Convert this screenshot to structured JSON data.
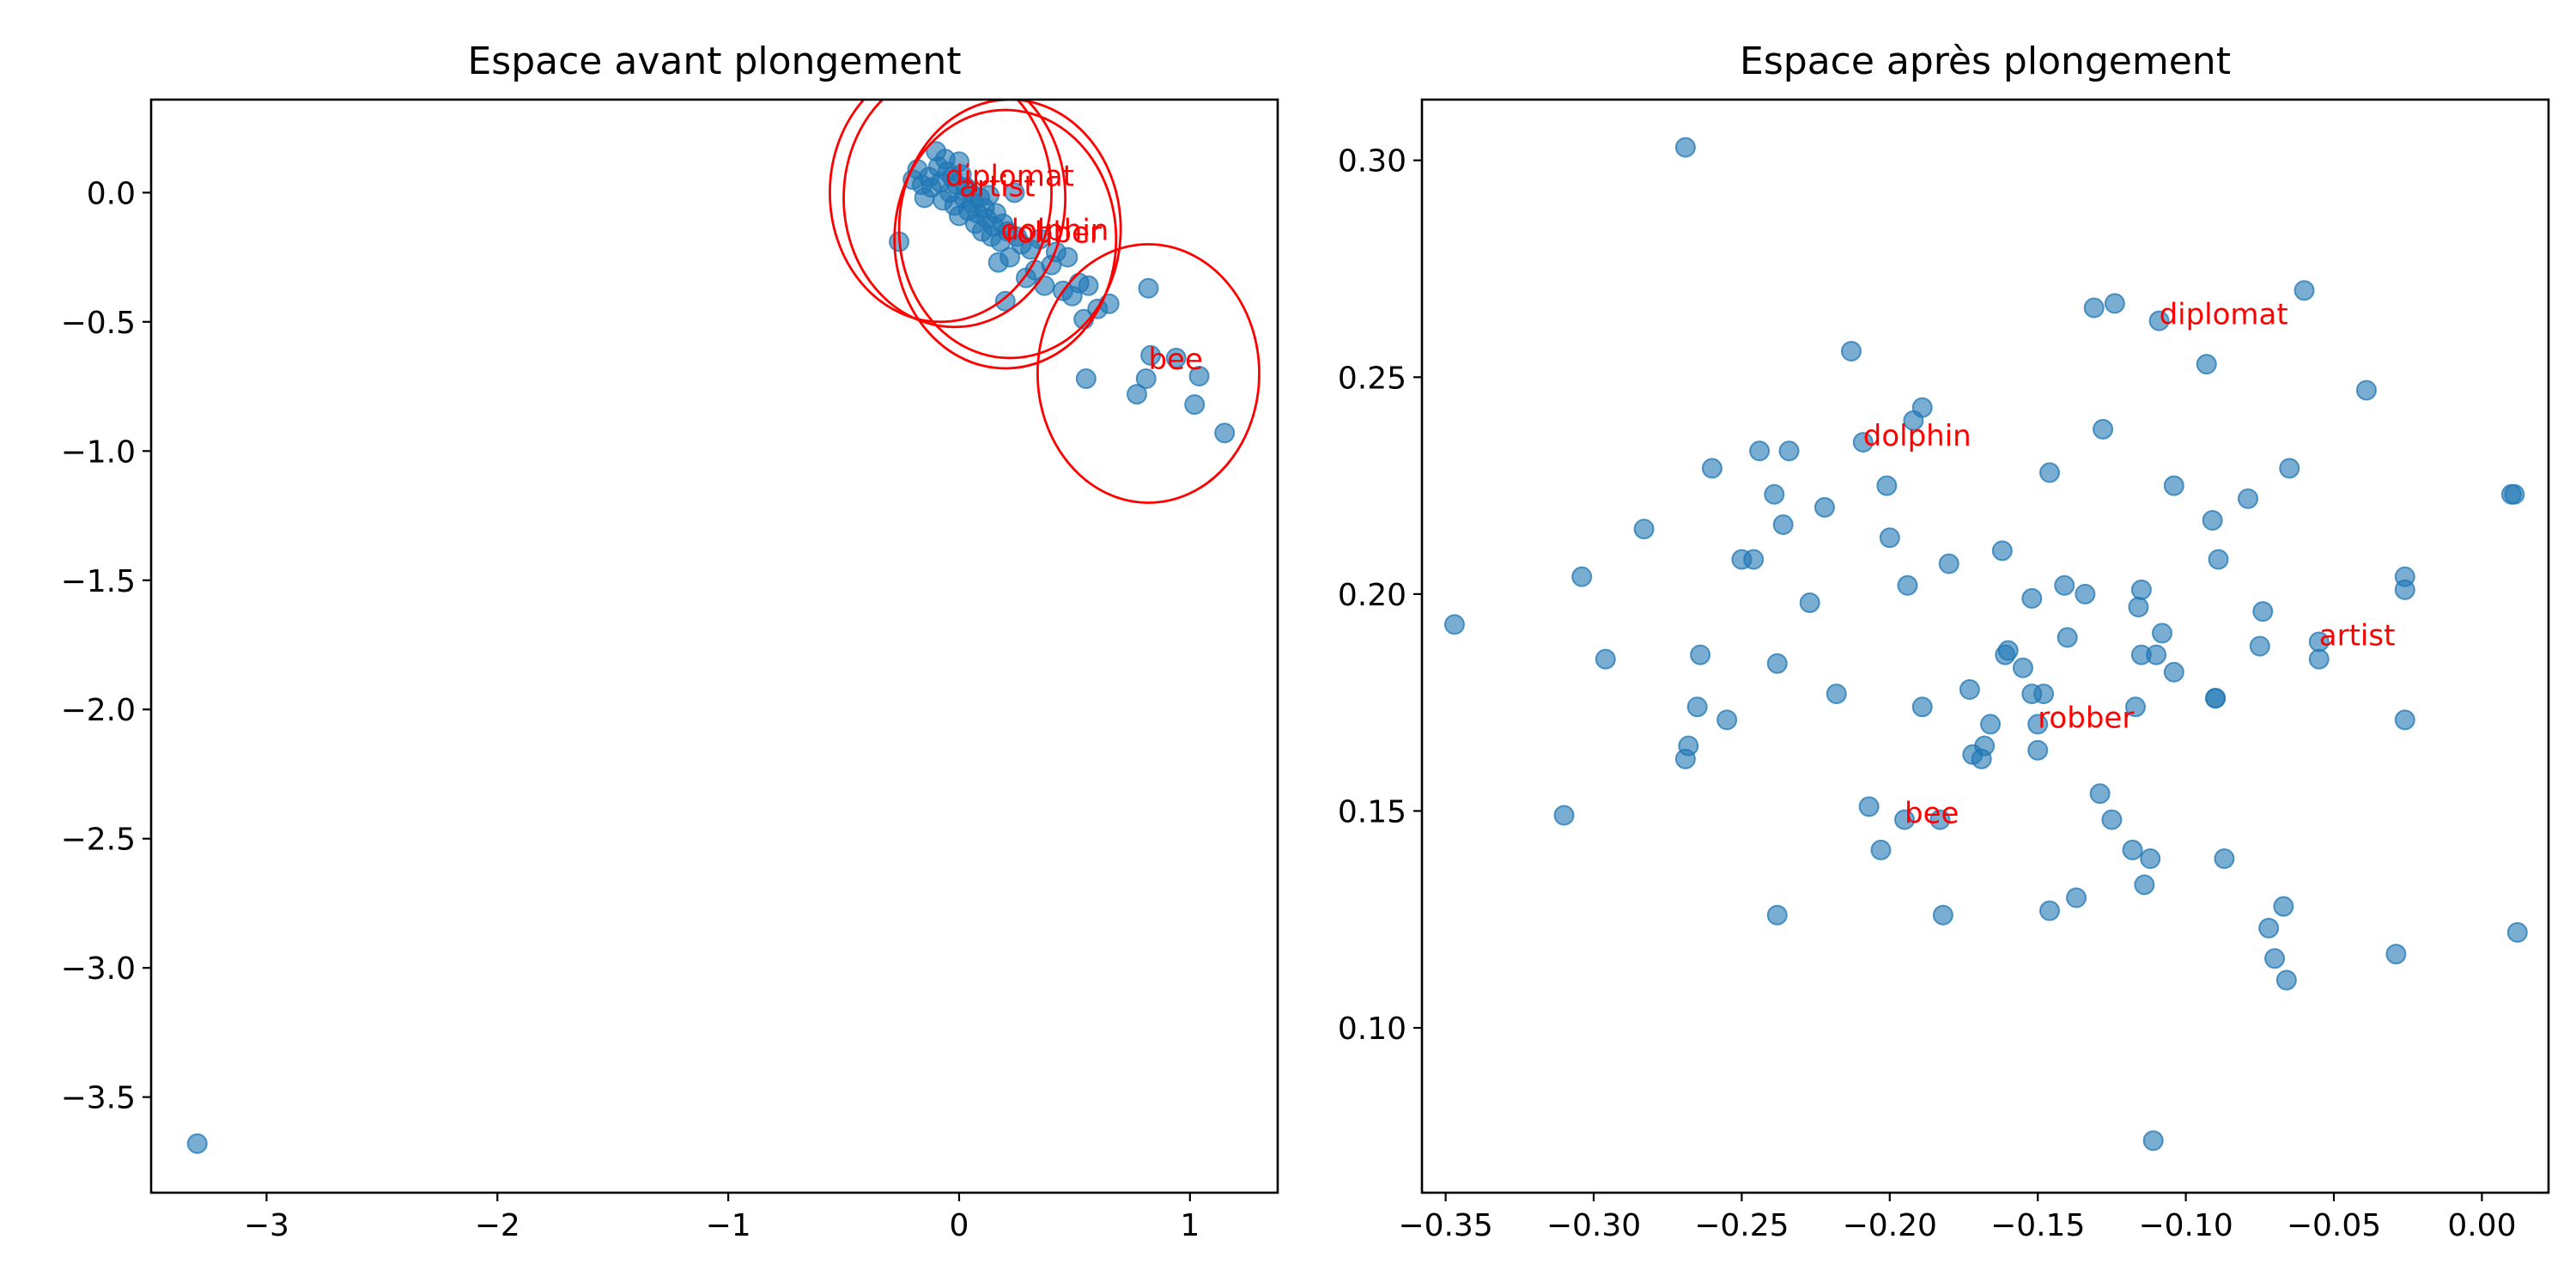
{
  "chart_data": [
    {
      "type": "scatter",
      "title": "Espace avant plongement",
      "xlim": [
        -3.5,
        1.38
      ],
      "ylim": [
        -3.87,
        0.36
      ],
      "xticks": [
        -3,
        -2,
        -1,
        0,
        1
      ],
      "xtick_labels": [
        "−3",
        "−2",
        "−1",
        "0",
        "1"
      ],
      "yticks": [
        0.0,
        -0.5,
        -1.0,
        -1.5,
        -2.0,
        -2.5,
        -3.0,
        -3.5
      ],
      "ytick_labels": [
        "0.0",
        "−0.5",
        "−1.0",
        "−1.5",
        "−2.0",
        "−2.5",
        "−3.0",
        "−3.5"
      ],
      "points": [
        [
          -3.3,
          -3.68
        ],
        [
          -0.26,
          -0.19
        ],
        [
          -0.2,
          0.05
        ],
        [
          -0.18,
          0.09
        ],
        [
          -0.16,
          0.03
        ],
        [
          -0.15,
          -0.02
        ],
        [
          -0.13,
          0.06
        ],
        [
          -0.12,
          0.02
        ],
        [
          -0.1,
          0.16
        ],
        [
          -0.09,
          0.1
        ],
        [
          -0.08,
          0.04
        ],
        [
          -0.07,
          -0.03
        ],
        [
          -0.06,
          0.13
        ],
        [
          -0.05,
          0.08
        ],
        [
          -0.04,
          0.0
        ],
        [
          -0.03,
          0.06
        ],
        [
          -0.02,
          -0.05
        ],
        [
          -0.01,
          0.03
        ],
        [
          0.0,
          0.12
        ],
        [
          0.0,
          -0.09
        ],
        [
          0.01,
          0.07
        ],
        [
          0.02,
          -0.02
        ],
        [
          0.03,
          0.02
        ],
        [
          0.04,
          -0.07
        ],
        [
          0.05,
          0.0
        ],
        [
          0.06,
          -0.04
        ],
        [
          0.07,
          -0.12
        ],
        [
          0.08,
          -0.08
        ],
        [
          0.09,
          -0.02
        ],
        [
          0.1,
          -0.15
        ],
        [
          0.11,
          -0.06
        ],
        [
          0.12,
          -0.1
        ],
        [
          0.13,
          -0.01
        ],
        [
          0.14,
          -0.17
        ],
        [
          0.15,
          -0.13
        ],
        [
          0.16,
          -0.08
        ],
        [
          0.17,
          -0.27
        ],
        [
          0.18,
          -0.19
        ],
        [
          0.19,
          -0.12
        ],
        [
          0.2,
          -0.42
        ],
        [
          0.21,
          -0.15
        ],
        [
          0.22,
          -0.25
        ],
        [
          0.24,
          0.0
        ],
        [
          0.25,
          -0.17
        ],
        [
          0.27,
          -0.2
        ],
        [
          0.29,
          -0.33
        ],
        [
          0.31,
          -0.22
        ],
        [
          0.33,
          -0.3
        ],
        [
          0.35,
          -0.18
        ],
        [
          0.37,
          -0.36
        ],
        [
          0.4,
          -0.28
        ],
        [
          0.42,
          -0.23
        ],
        [
          0.45,
          -0.38
        ],
        [
          0.47,
          -0.25
        ],
        [
          0.49,
          -0.4
        ],
        [
          0.52,
          -0.35
        ],
        [
          0.54,
          -0.49
        ],
        [
          0.55,
          -0.72
        ],
        [
          0.56,
          -0.36
        ],
        [
          0.6,
          -0.45
        ],
        [
          0.65,
          -0.43
        ],
        [
          0.77,
          -0.78
        ],
        [
          0.81,
          -0.72
        ],
        [
          0.82,
          -0.37
        ],
        [
          0.83,
          -0.63
        ],
        [
          0.94,
          -0.64
        ],
        [
          1.02,
          -0.82
        ],
        [
          1.04,
          -0.71
        ],
        [
          1.15,
          -0.93
        ]
      ],
      "annotations": [
        {
          "label": "diplomat",
          "x": -0.06,
          "y": 0.04
        },
        {
          "label": "artist",
          "x": 0.0,
          "y": 0.0
        },
        {
          "label": "dolphin",
          "x": 0.18,
          "y": -0.17
        },
        {
          "label": "robber",
          "x": 0.2,
          "y": -0.18
        },
        {
          "label": "bee",
          "x": 0.82,
          "y": -0.67
        }
      ],
      "circles": [
        {
          "cx": -0.08,
          "cy": 0.0,
          "rx": 0.48,
          "ry": 0.5
        },
        {
          "cx": -0.02,
          "cy": -0.02,
          "rx": 0.48,
          "ry": 0.5
        },
        {
          "cx": 0.2,
          "cy": -0.18,
          "rx": 0.48,
          "ry": 0.5
        },
        {
          "cx": 0.22,
          "cy": -0.14,
          "rx": 0.48,
          "ry": 0.5
        },
        {
          "cx": 0.82,
          "cy": -0.7,
          "rx": 0.48,
          "ry": 0.5
        }
      ]
    },
    {
      "type": "scatter",
      "title": "Espace après plongement",
      "xlim": [
        -0.358,
        0.0225
      ],
      "ylim": [
        0.062,
        0.314
      ],
      "xticks": [
        -0.35,
        -0.3,
        -0.25,
        -0.2,
        -0.15,
        -0.1,
        -0.05,
        0.0
      ],
      "xtick_labels": [
        "−0.35",
        "−0.30",
        "−0.25",
        "−0.20",
        "−0.15",
        "−0.10",
        "−0.05",
        "0.00"
      ],
      "yticks": [
        0.1,
        0.15,
        0.2,
        0.25,
        0.3
      ],
      "ytick_labels": [
        "0.10",
        "0.15",
        "0.20",
        "0.25",
        "0.30"
      ],
      "points": [
        [
          -0.269,
          0.303
        ],
        [
          -0.347,
          0.193
        ],
        [
          -0.31,
          0.149
        ],
        [
          -0.304,
          0.204
        ],
        [
          -0.296,
          0.185
        ],
        [
          -0.283,
          0.215
        ],
        [
          -0.269,
          0.162
        ],
        [
          -0.268,
          0.165
        ],
        [
          -0.265,
          0.174
        ],
        [
          -0.264,
          0.186
        ],
        [
          -0.26,
          0.229
        ],
        [
          -0.255,
          0.171
        ],
        [
          -0.25,
          0.208
        ],
        [
          -0.246,
          0.208
        ],
        [
          -0.244,
          0.233
        ],
        [
          -0.239,
          0.223
        ],
        [
          -0.238,
          0.126
        ],
        [
          -0.238,
          0.184
        ],
        [
          -0.236,
          0.216
        ],
        [
          -0.234,
          0.233
        ],
        [
          -0.227,
          0.198
        ],
        [
          -0.222,
          0.22
        ],
        [
          -0.218,
          0.177
        ],
        [
          -0.213,
          0.256
        ],
        [
          -0.209,
          0.235
        ],
        [
          -0.207,
          0.151
        ],
        [
          -0.203,
          0.141
        ],
        [
          -0.201,
          0.225
        ],
        [
          -0.2,
          0.213
        ],
        [
          -0.195,
          0.148
        ],
        [
          -0.194,
          0.202
        ],
        [
          -0.192,
          0.24
        ],
        [
          -0.189,
          0.243
        ],
        [
          -0.189,
          0.174
        ],
        [
          -0.183,
          0.148
        ],
        [
          -0.182,
          0.126
        ],
        [
          -0.18,
          0.207
        ],
        [
          -0.173,
          0.178
        ],
        [
          -0.172,
          0.163
        ],
        [
          -0.169,
          0.162
        ],
        [
          -0.168,
          0.165
        ],
        [
          -0.166,
          0.17
        ],
        [
          -0.162,
          0.21
        ],
        [
          -0.161,
          0.186
        ],
        [
          -0.16,
          0.187
        ],
        [
          -0.155,
          0.183
        ],
        [
          -0.152,
          0.199
        ],
        [
          -0.152,
          0.177
        ],
        [
          -0.15,
          0.17
        ],
        [
          -0.15,
          0.164
        ],
        [
          -0.148,
          0.177
        ],
        [
          -0.146,
          0.228
        ],
        [
          -0.146,
          0.127
        ],
        [
          -0.141,
          0.202
        ],
        [
          -0.14,
          0.19
        ],
        [
          -0.137,
          0.13
        ],
        [
          -0.134,
          0.2
        ],
        [
          -0.131,
          0.266
        ],
        [
          -0.129,
          0.154
        ],
        [
          -0.128,
          0.238
        ],
        [
          -0.125,
          0.148
        ],
        [
          -0.124,
          0.267
        ],
        [
          -0.118,
          0.141
        ],
        [
          -0.117,
          0.174
        ],
        [
          -0.116,
          0.197
        ],
        [
          -0.115,
          0.201
        ],
        [
          -0.115,
          0.186
        ],
        [
          -0.114,
          0.133
        ],
        [
          -0.112,
          0.139
        ],
        [
          -0.111,
          0.074
        ],
        [
          -0.11,
          0.186
        ],
        [
          -0.109,
          0.263
        ],
        [
          -0.108,
          0.191
        ],
        [
          -0.104,
          0.225
        ],
        [
          -0.104,
          0.182
        ],
        [
          -0.093,
          0.253
        ],
        [
          -0.091,
          0.217
        ],
        [
          -0.09,
          0.176
        ],
        [
          -0.09,
          0.176
        ],
        [
          -0.089,
          0.208
        ],
        [
          -0.087,
          0.139
        ],
        [
          -0.079,
          0.222
        ],
        [
          -0.075,
          0.188
        ],
        [
          -0.074,
          0.196
        ],
        [
          -0.072,
          0.123
        ],
        [
          -0.07,
          0.116
        ],
        [
          -0.067,
          0.128
        ],
        [
          -0.066,
          0.111
        ],
        [
          -0.065,
          0.229
        ],
        [
          -0.06,
          0.27
        ],
        [
          -0.055,
          0.189
        ],
        [
          -0.055,
          0.185
        ],
        [
          -0.039,
          0.247
        ],
        [
          -0.029,
          0.117
        ],
        [
          -0.026,
          0.204
        ],
        [
          -0.026,
          0.201
        ],
        [
          -0.026,
          0.171
        ],
        [
          0.01,
          0.223
        ],
        [
          0.011,
          0.223
        ],
        [
          0.012,
          0.122
        ]
      ],
      "annotations": [
        {
          "label": "diplomat",
          "x": -0.109,
          "y": 0.263
        },
        {
          "label": "dolphin",
          "x": -0.209,
          "y": 0.235
        },
        {
          "label": "artist",
          "x": -0.055,
          "y": 0.189
        },
        {
          "label": "robber",
          "x": -0.15,
          "y": 0.17
        },
        {
          "label": "bee",
          "x": -0.195,
          "y": 0.148
        }
      ],
      "circles": []
    }
  ]
}
